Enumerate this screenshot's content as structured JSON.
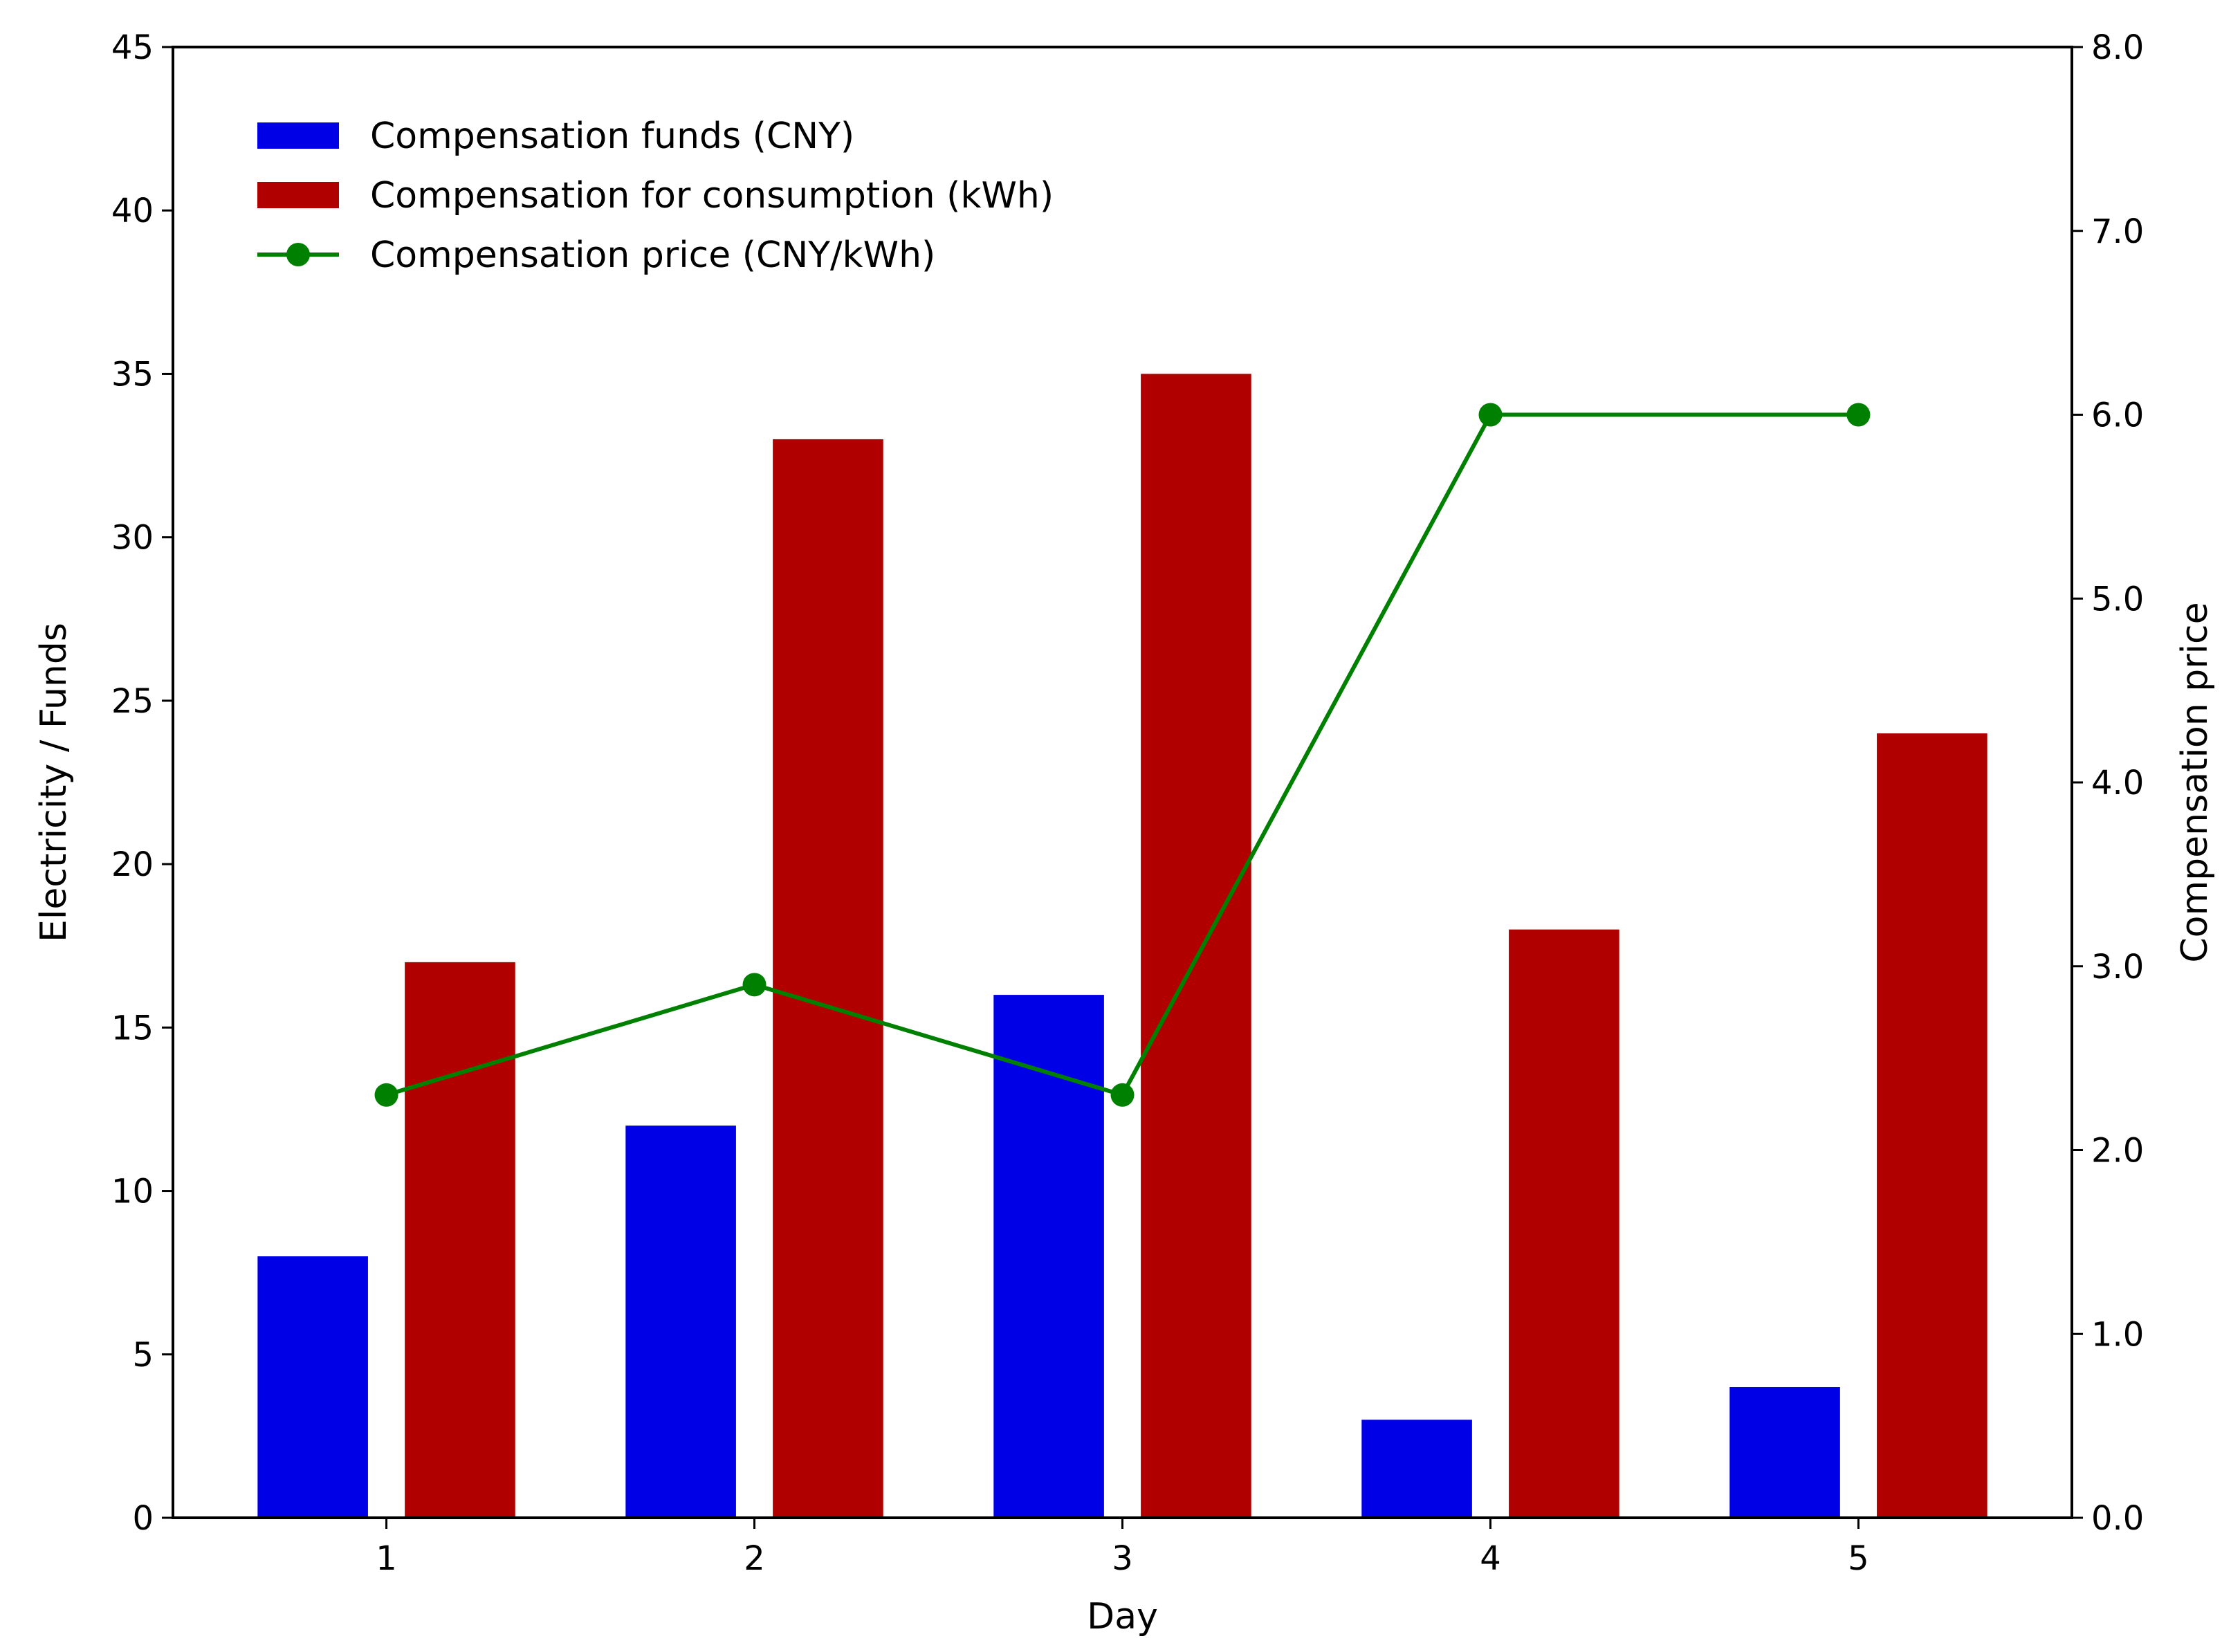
{
  "chart_data": {
    "type": "bar",
    "title": "",
    "xlabel": "Day",
    "ylabel": "Electricity / Funds",
    "y2label": "Compensation price",
    "categories": [
      "1",
      "2",
      "3",
      "4",
      "5"
    ],
    "ylim": [
      0,
      45
    ],
    "y2lim": [
      0.0,
      8.0
    ],
    "yticks": [
      "0",
      "5",
      "10",
      "15",
      "20",
      "25",
      "30",
      "35",
      "40",
      "45"
    ],
    "y2ticks": [
      "0.0",
      "1.0",
      "2.0",
      "3.0",
      "4.0",
      "5.0",
      "6.0",
      "7.0",
      "8.0"
    ],
    "grid": false,
    "legend_position": "top-left",
    "series": [
      {
        "name": "Compensation funds (CNY)",
        "type": "bar",
        "axis": "left",
        "color": "#0000e6",
        "values": [
          8,
          12,
          16,
          3,
          4
        ]
      },
      {
        "name": "Compensation for consumption (kWh)",
        "type": "bar",
        "axis": "left",
        "color": "#b00000",
        "values": [
          17,
          33,
          35,
          18,
          24
        ]
      },
      {
        "name": "Compensation price (CNY/kWh)",
        "type": "line",
        "axis": "right",
        "color": "#008000",
        "marker": "circle",
        "values": [
          2.3,
          2.9,
          2.3,
          6.0,
          6.0
        ]
      }
    ]
  }
}
